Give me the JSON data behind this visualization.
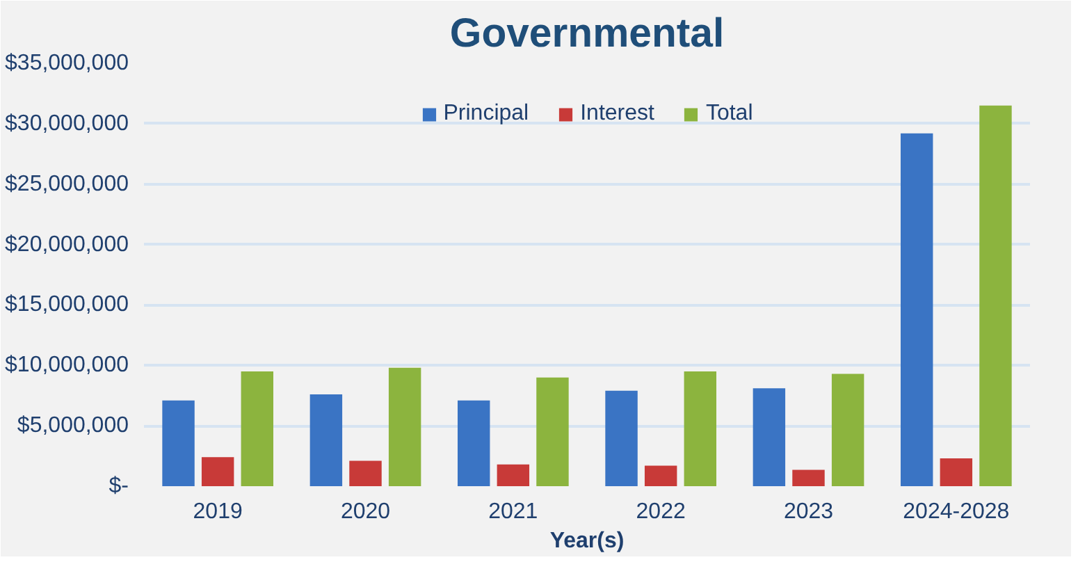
{
  "chart_data": {
    "type": "bar",
    "title": "Governmental",
    "xlabel": "Year(s)",
    "categories": [
      "2019",
      "2020",
      "2021",
      "2022",
      "2023",
      "2024-2028"
    ],
    "series": [
      {
        "name": "Principal",
        "color": "#3a74c4",
        "values": [
          7100000,
          7600000,
          7100000,
          7900000,
          8100000,
          29200000
        ]
      },
      {
        "name": "Interest",
        "color": "#c83a38",
        "values": [
          2400000,
          2100000,
          1800000,
          1700000,
          1350000,
          2300000
        ]
      },
      {
        "name": "Total",
        "color": "#8cb43e",
        "values": [
          9500000,
          9800000,
          9000000,
          9500000,
          9300000,
          31500000
        ]
      }
    ],
    "ylim": [
      0,
      35000000
    ],
    "yticks": [
      {
        "value": 0,
        "label": "$-"
      },
      {
        "value": 5000000,
        "label": "$5,000,000"
      },
      {
        "value": 10000000,
        "label": "$10,000,000"
      },
      {
        "value": 15000000,
        "label": "$15,000,000"
      },
      {
        "value": 20000000,
        "label": "$20,000,000"
      },
      {
        "value": 25000000,
        "label": "$25,000,000"
      },
      {
        "value": 30000000,
        "label": "$30,000,000"
      },
      {
        "value": 35000000,
        "label": "$35,000,000"
      }
    ],
    "grid": "y",
    "legend": "top"
  }
}
